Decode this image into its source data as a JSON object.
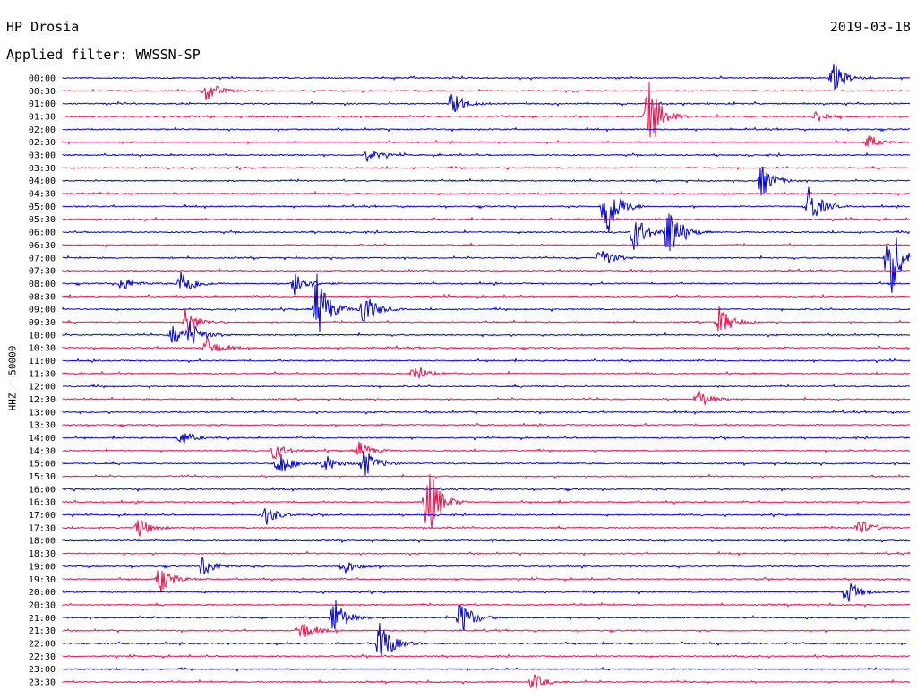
{
  "header": {
    "station": "HP Drosia",
    "date": "2019-03-18",
    "filter": "Applied filter: WWSSN-SP"
  },
  "channel_label": "HHZ - 50000",
  "colors": {
    "odd_trace": "#0000e0",
    "even_trace": "#f0104a",
    "text": "#000000",
    "background": "#ffffff"
  },
  "chart_data": {
    "type": "helicorder",
    "title": "HP Drosia",
    "xlabel": "",
    "ylabel": "HHZ - 50000",
    "grid": false,
    "row_labels": [
      "00:00",
      "00:30",
      "01:00",
      "01:30",
      "02:00",
      "02:30",
      "03:00",
      "03:30",
      "04:00",
      "04:30",
      "05:00",
      "05:30",
      "06:00",
      "06:30",
      "07:00",
      "07:30",
      "08:00",
      "08:30",
      "09:00",
      "09:30",
      "10:00",
      "10:30",
      "11:00",
      "11:30",
      "12:00",
      "12:30",
      "13:00",
      "13:30",
      "14:00",
      "14:30",
      "15:00",
      "15:30",
      "16:00",
      "16:30",
      "17:00",
      "17:30",
      "18:00",
      "18:30",
      "19:00",
      "19:30",
      "20:00",
      "20:30",
      "21:00",
      "21:30",
      "22:00",
      "22:30",
      "23:00",
      "23:30"
    ],
    "events": [
      {
        "row": 0,
        "t": 0.91,
        "amp": 1.3
      },
      {
        "row": 1,
        "t": 0.17,
        "amp": 1.0
      },
      {
        "row": 2,
        "t": 0.46,
        "amp": 1.1
      },
      {
        "row": 3,
        "t": 0.69,
        "amp": 4.0
      },
      {
        "row": 3,
        "t": 0.89,
        "amp": 0.6
      },
      {
        "row": 5,
        "t": 0.95,
        "amp": 0.6
      },
      {
        "row": 6,
        "t": 0.36,
        "amp": 0.6
      },
      {
        "row": 8,
        "t": 0.825,
        "amp": 1.5
      },
      {
        "row": 10,
        "t": 0.64,
        "amp": 3.6
      },
      {
        "row": 10,
        "t": 0.88,
        "amp": 2.0
      },
      {
        "row": 12,
        "t": 0.675,
        "amp": 1.8
      },
      {
        "row": 12,
        "t": 0.715,
        "amp": 2.6
      },
      {
        "row": 14,
        "t": 0.635,
        "amp": 1.0
      },
      {
        "row": 14,
        "t": 0.975,
        "amp": 4.2
      },
      {
        "row": 16,
        "t": 0.07,
        "amp": 0.7
      },
      {
        "row": 16,
        "t": 0.14,
        "amp": 1.4
      },
      {
        "row": 16,
        "t": 0.275,
        "amp": 1.2
      },
      {
        "row": 18,
        "t": 0.3,
        "amp": 3.2
      },
      {
        "row": 18,
        "t": 0.355,
        "amp": 1.7
      },
      {
        "row": 19,
        "t": 0.145,
        "amp": 1.3
      },
      {
        "row": 19,
        "t": 0.775,
        "amp": 1.4
      },
      {
        "row": 20,
        "t": 0.13,
        "amp": 0.9
      },
      {
        "row": 20,
        "t": 0.15,
        "amp": 1.1
      },
      {
        "row": 21,
        "t": 0.17,
        "amp": 0.9
      },
      {
        "row": 23,
        "t": 0.415,
        "amp": 0.8
      },
      {
        "row": 25,
        "t": 0.75,
        "amp": 0.9
      },
      {
        "row": 28,
        "t": 0.14,
        "amp": 0.7
      },
      {
        "row": 29,
        "t": 0.25,
        "amp": 0.8
      },
      {
        "row": 29,
        "t": 0.35,
        "amp": 0.8
      },
      {
        "row": 30,
        "t": 0.255,
        "amp": 1.3
      },
      {
        "row": 30,
        "t": 0.31,
        "amp": 0.8
      },
      {
        "row": 30,
        "t": 0.355,
        "amp": 1.4
      },
      {
        "row": 33,
        "t": 0.43,
        "amp": 3.7
      },
      {
        "row": 34,
        "t": 0.24,
        "amp": 0.9
      },
      {
        "row": 35,
        "t": 0.09,
        "amp": 0.9
      },
      {
        "row": 35,
        "t": 0.94,
        "amp": 0.8
      },
      {
        "row": 38,
        "t": 0.165,
        "amp": 1.0
      },
      {
        "row": 38,
        "t": 0.33,
        "amp": 0.8
      },
      {
        "row": 39,
        "t": 0.115,
        "amp": 1.3
      },
      {
        "row": 40,
        "t": 0.925,
        "amp": 1.2
      },
      {
        "row": 42,
        "t": 0.32,
        "amp": 1.9
      },
      {
        "row": 42,
        "t": 0.47,
        "amp": 1.6
      },
      {
        "row": 43,
        "t": 0.28,
        "amp": 1.1
      },
      {
        "row": 44,
        "t": 0.375,
        "amp": 2.1
      },
      {
        "row": 47,
        "t": 0.555,
        "amp": 0.8
      }
    ]
  }
}
